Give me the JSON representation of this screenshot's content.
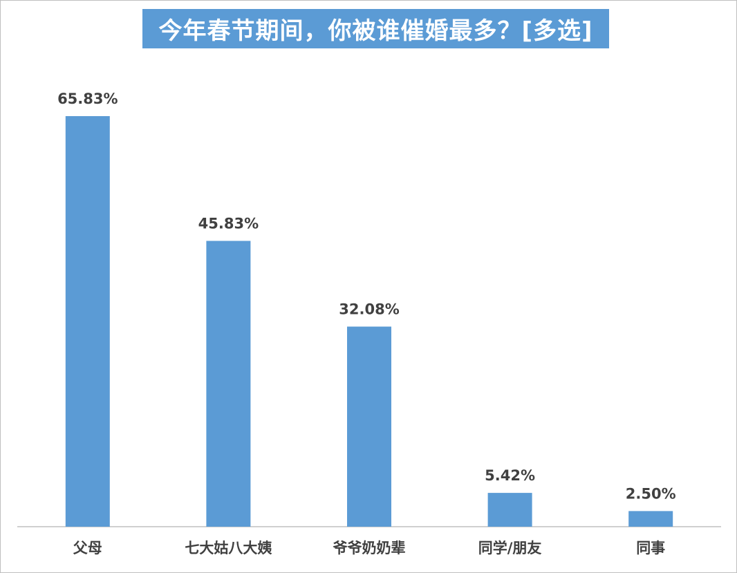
{
  "chart_data": {
    "type": "bar",
    "title": "今年春节期间，你被谁催婚最多？[多选]",
    "categories": [
      "父母",
      "七大姑八大姨",
      "爷爷奶奶辈",
      "同学/朋友",
      "同事"
    ],
    "values": [
      65.83,
      45.83,
      32.08,
      5.42,
      2.5
    ],
    "value_labels": [
      "65.83%",
      "45.83%",
      "32.08%",
      "5.42%",
      "2.50%"
    ],
    "unit": "%",
    "xlabel": "",
    "ylabel": "",
    "grid": false,
    "legend": "none",
    "colors": {
      "bar": "#5b9bd5",
      "title_bg": "#5b9bd5",
      "title_text": "#ffffff",
      "label_text": "#404040",
      "axis": "#bfbfbf"
    }
  }
}
